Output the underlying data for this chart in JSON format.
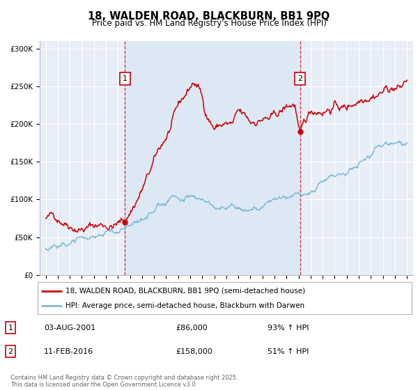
{
  "title": "18, WALDEN ROAD, BLACKBURN, BB1 9PQ",
  "subtitle": "Price paid vs. HM Land Registry's House Price Index (HPI)",
  "legend_line1": "18, WALDEN ROAD, BLACKBURN, BB1 9PQ (semi-detached house)",
  "legend_line2": "HPI: Average price, semi-detached house, Blackburn with Darwen",
  "footer": "Contains HM Land Registry data © Crown copyright and database right 2025.\nThis data is licensed under the Open Government Licence v3.0.",
  "marker1_label": "1",
  "marker1_date": "03-AUG-2001",
  "marker1_price": "£86,000",
  "marker1_hpi": "93% ↑ HPI",
  "marker1_year": 2001.58,
  "marker1_value": 86000,
  "marker2_label": "2",
  "marker2_date": "11-FEB-2016",
  "marker2_price": "£158,000",
  "marker2_hpi": "51% ↑ HPI",
  "marker2_year": 2016.12,
  "marker2_value": 158000,
  "red_color": "#cc0000",
  "blue_color": "#7eb8d4",
  "shade_color": "#dde8f5",
  "background_color": "#e8eef8",
  "grid_color": "#ffffff",
  "ylim": [
    0,
    310000
  ],
  "xlim": [
    1994.5,
    2025.5
  ],
  "yticks": [
    0,
    50000,
    100000,
    150000,
    200000,
    250000,
    300000
  ],
  "ytick_labels": [
    "£0",
    "£50K",
    "£100K",
    "£150K",
    "£200K",
    "£250K",
    "£300K"
  ],
  "xticks": [
    1995,
    1996,
    1997,
    1998,
    1999,
    2000,
    2001,
    2002,
    2003,
    2004,
    2005,
    2006,
    2007,
    2008,
    2009,
    2010,
    2011,
    2012,
    2013,
    2014,
    2015,
    2016,
    2017,
    2018,
    2019,
    2020,
    2021,
    2022,
    2023,
    2024,
    2025
  ]
}
